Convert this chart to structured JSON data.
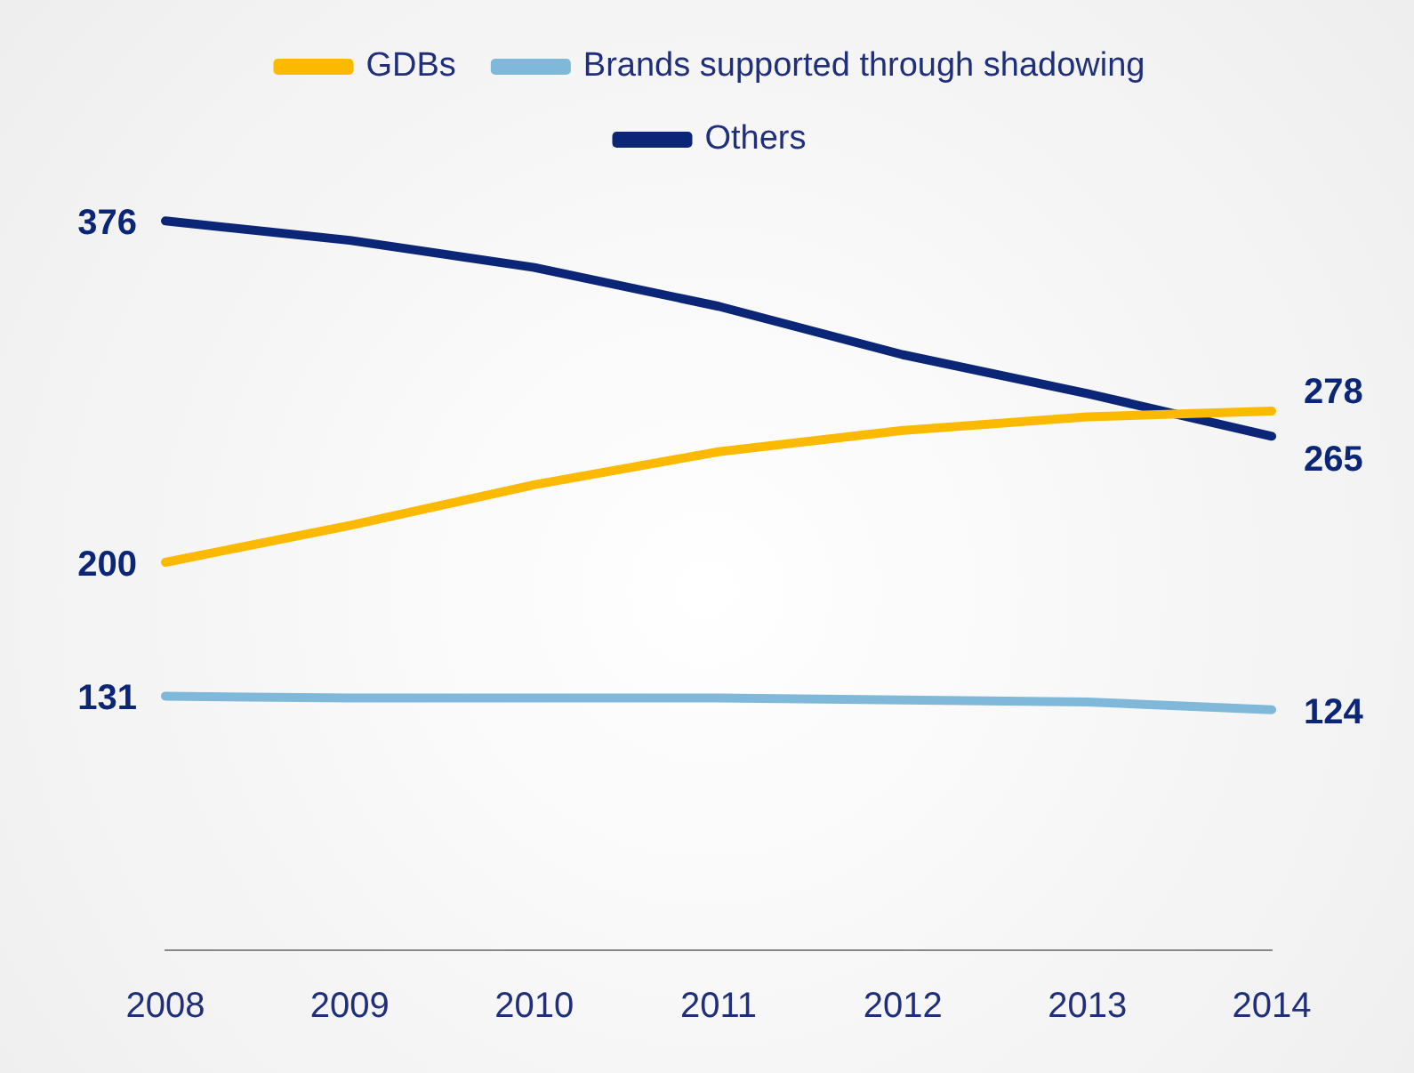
{
  "chart_data": {
    "type": "line",
    "categories": [
      "2008",
      "2009",
      "2010",
      "2011",
      "2012",
      "2013",
      "2014"
    ],
    "series": [
      {
        "name": "GDBs",
        "color": "#fbb900",
        "values": [
          200,
          219,
          240,
          257,
          268,
          275,
          278
        ],
        "value_labels": [
          "200",
          null,
          null,
          null,
          null,
          null,
          "278"
        ]
      },
      {
        "name": "Brands supported through shadowing",
        "color": "#7fb8d8",
        "values": [
          131,
          130,
          130,
          130,
          129,
          128,
          124
        ],
        "value_labels": [
          "131",
          null,
          null,
          null,
          null,
          null,
          "124"
        ]
      },
      {
        "name": "Others",
        "color": "#0b2577",
        "values": [
          376,
          366,
          352,
          332,
          307,
          287,
          265
        ],
        "value_labels": [
          "376",
          null,
          null,
          null,
          null,
          null,
          "265"
        ]
      }
    ],
    "tick_labels": "x",
    "grid": false,
    "legend": "top",
    "marker": "none",
    "line_style": "solid"
  }
}
